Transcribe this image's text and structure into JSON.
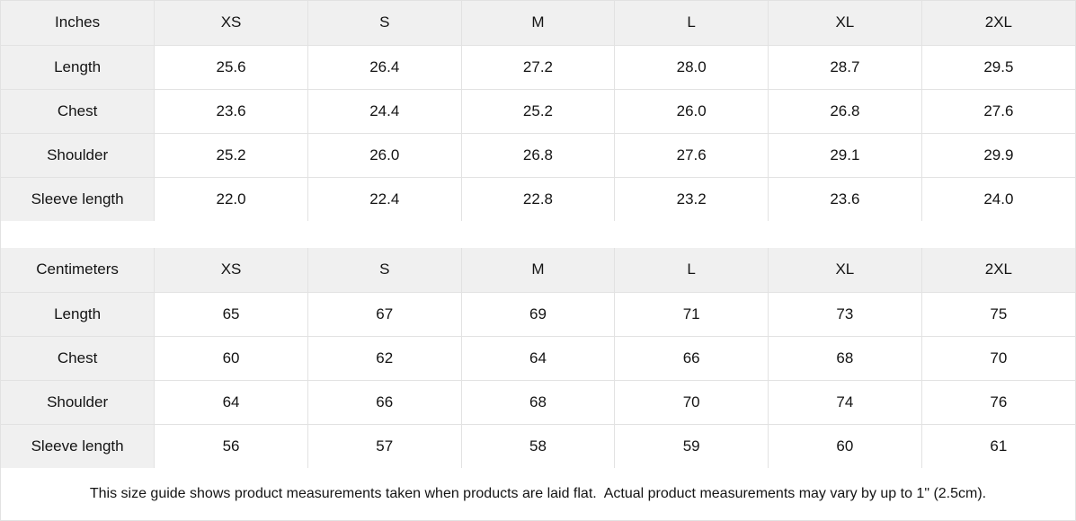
{
  "tables": [
    {
      "unit_label": "Inches",
      "sizes": [
        "XS",
        "S",
        "M",
        "L",
        "XL",
        "2XL"
      ],
      "rows": [
        {
          "label": "Length",
          "values": [
            "25.6",
            "26.4",
            "27.2",
            "28.0",
            "28.7",
            "29.5"
          ]
        },
        {
          "label": "Chest",
          "values": [
            "23.6",
            "24.4",
            "25.2",
            "26.0",
            "26.8",
            "27.6"
          ]
        },
        {
          "label": "Shoulder",
          "values": [
            "25.2",
            "26.0",
            "26.8",
            "27.6",
            "29.1",
            "29.9"
          ]
        },
        {
          "label": "Sleeve length",
          "values": [
            "22.0",
            "22.4",
            "22.8",
            "23.2",
            "23.6",
            "24.0"
          ]
        }
      ]
    },
    {
      "unit_label": "Centimeters",
      "sizes": [
        "XS",
        "S",
        "M",
        "L",
        "XL",
        "2XL"
      ],
      "rows": [
        {
          "label": "Length",
          "values": [
            "65",
            "67",
            "69",
            "71",
            "73",
            "75"
          ]
        },
        {
          "label": "Chest",
          "values": [
            "60",
            "62",
            "64",
            "66",
            "68",
            "70"
          ]
        },
        {
          "label": "Shoulder",
          "values": [
            "64",
            "66",
            "68",
            "70",
            "74",
            "76"
          ]
        },
        {
          "label": "Sleeve length",
          "values": [
            "56",
            "57",
            "58",
            "59",
            "60",
            "61"
          ]
        }
      ]
    }
  ],
  "footer_note": "This size guide shows product measurements taken when products are laid flat.  Actual product measurements may vary by up to 1\" (2.5cm).",
  "colors": {
    "header_bg": "#f0f0f0",
    "border": "#e2e2e2",
    "text": "#141414",
    "background": "#ffffff"
  }
}
